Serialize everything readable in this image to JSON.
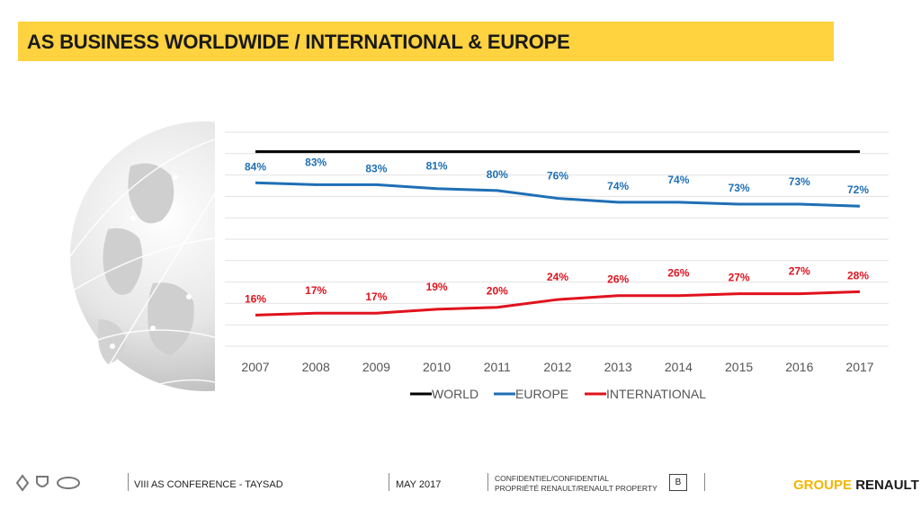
{
  "header": {
    "title": "AS BUSINESS WORLDWIDE / INTERNATIONAL & EUROPE"
  },
  "chart_data": {
    "type": "line",
    "categories": [
      "2007",
      "2008",
      "2009",
      "2010",
      "2011",
      "2012",
      "2013",
      "2014",
      "2015",
      "2016",
      "2017"
    ],
    "series": [
      {
        "name": "WORLD",
        "color": "#000000",
        "values": [
          100,
          100,
          100,
          100,
          100,
          100,
          100,
          100,
          100,
          100,
          100
        ]
      },
      {
        "name": "EUROPE",
        "color": "#1f6fb5",
        "values": [
          84,
          83,
          83,
          81,
          80,
          76,
          74,
          74,
          73,
          73,
          72
        ],
        "labels": [
          "84%",
          "83%",
          "83%",
          "81%",
          "80%",
          "76%",
          "74%",
          "74%",
          "73%",
          "73%",
          "72%"
        ]
      },
      {
        "name": "INTERNATIONAL",
        "color": "#e0121d",
        "values": [
          16,
          17,
          17,
          19,
          20,
          24,
          26,
          26,
          27,
          27,
          28
        ],
        "labels": [
          "16%",
          "17%",
          "17%",
          "19%",
          "20%",
          "24%",
          "26%",
          "26%",
          "27%",
          "27%",
          "28%"
        ]
      }
    ],
    "grid": true,
    "legend_position": "bottom"
  },
  "footer": {
    "conference": "VIII AS CONFERENCE - TAYSAD",
    "date": "MAY 2017",
    "confidential_line1": "CONFIDENTIEL/CONFIDENTIAL",
    "confidential_line2": "PROPRIÉTÉ RENAULT/RENAULT PROPERTY",
    "classification": "B",
    "brand_part1": "GROUPE",
    "brand_part2": "RENAULT"
  }
}
